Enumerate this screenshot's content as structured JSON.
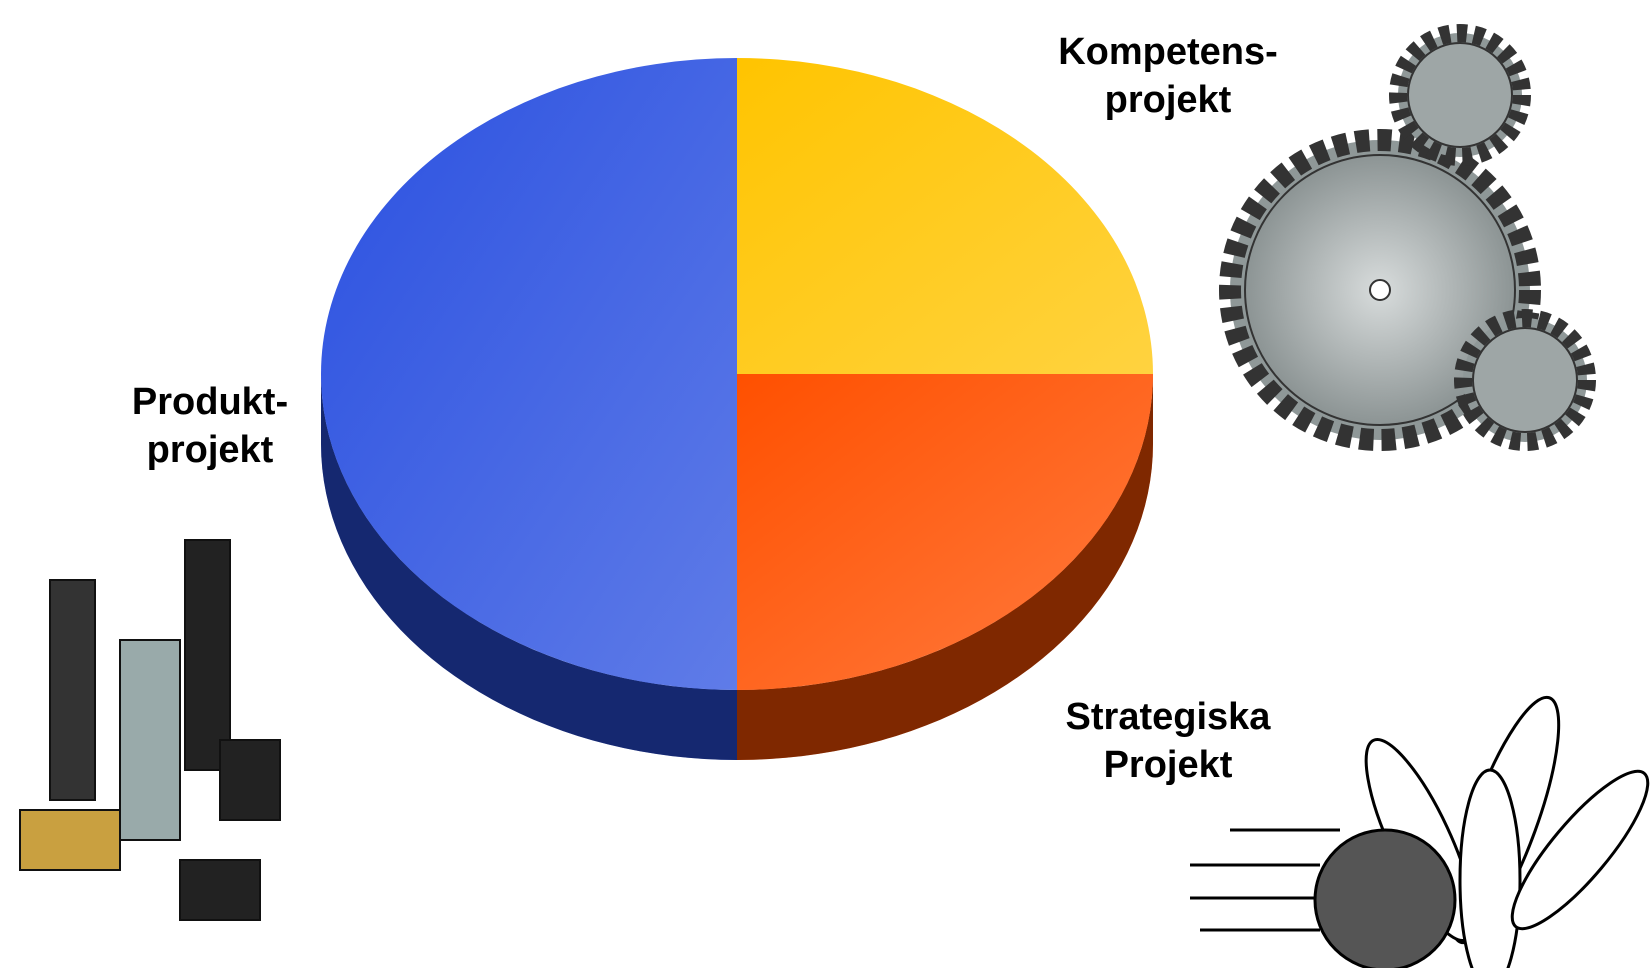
{
  "chart_data": {
    "type": "pie3d",
    "categories": [
      "Kompetens-\nprojekt",
      "Strategiska\nProjekt",
      "Produkt-\nprojekt"
    ],
    "values": [
      25,
      25,
      50
    ],
    "colors": [
      "#ffc400",
      "#ff5000",
      "#2a50e0"
    ]
  }
}
